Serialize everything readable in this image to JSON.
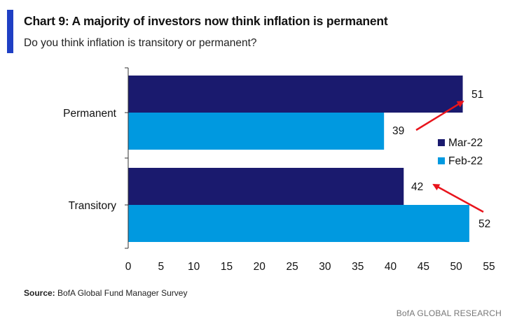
{
  "header": {
    "title": "Chart 9: A majority of investors now think inflation is permanent",
    "subtitle": "Do you think inflation is transitory or permanent?"
  },
  "footer": {
    "source_label": "Source:",
    "source_text": "BofA Global Fund Manager Survey",
    "brand": "BofA GLOBAL RESEARCH"
  },
  "colors": {
    "accent": "#1f3fc4",
    "mar22": "#1a1a6e",
    "feb22": "#0099e0",
    "arrow": "#e8141c"
  },
  "chart_data": {
    "type": "bar",
    "orientation": "horizontal",
    "categories": [
      "Permanent",
      "Transitory"
    ],
    "series": [
      {
        "name": "Mar-22",
        "values": [
          51,
          42
        ]
      },
      {
        "name": "Feb-22",
        "values": [
          39,
          52
        ]
      }
    ],
    "xlim": [
      0,
      55
    ],
    "xticks": [
      0,
      5,
      10,
      15,
      20,
      25,
      30,
      35,
      40,
      45,
      50,
      55
    ],
    "grid": false,
    "legend": "right",
    "data_labels": true,
    "annotations": [
      {
        "type": "arrow",
        "from": "Feb-22 Permanent",
        "to": "Mar-22 Permanent"
      },
      {
        "type": "arrow",
        "from": "Feb-22 Transitory",
        "to": "Mar-22 Transitory"
      }
    ]
  }
}
